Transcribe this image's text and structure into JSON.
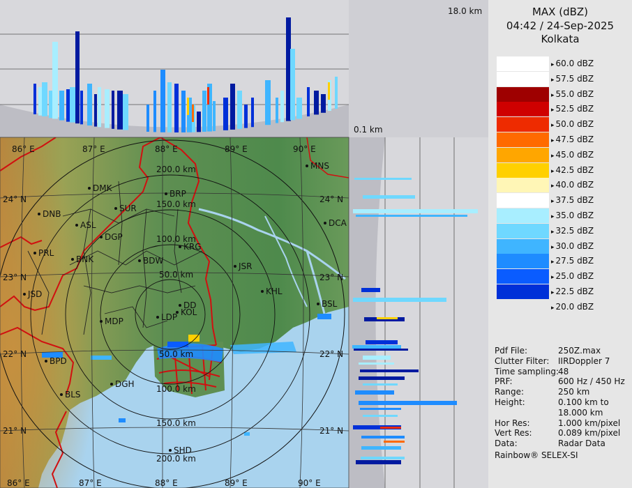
{
  "panel": {
    "product": "MAX (dBZ)",
    "datetime": "04:42 / 24-Sep-2025",
    "station": "Kolkata",
    "legend": [
      {
        "label": "60.0 dBZ",
        "color": "#ffffff"
      },
      {
        "label": "57.5 dBZ",
        "color": "#ffffff"
      },
      {
        "label": "55.0 dBZ",
        "color": "#9e0000"
      },
      {
        "label": "52.5 dBZ",
        "color": "#cf0000"
      },
      {
        "label": "50.0 dBZ",
        "color": "#ee2b00"
      },
      {
        "label": "47.5 dBZ",
        "color": "#ff6a00"
      },
      {
        "label": "45.0 dBZ",
        "color": "#ffa600"
      },
      {
        "label": "42.5 dBZ",
        "color": "#ffd000"
      },
      {
        "label": "40.0 dBZ",
        "color": "#fff6b6"
      },
      {
        "label": "37.5 dBZ",
        "color": "#ffffff"
      },
      {
        "label": "35.0 dBZ",
        "color": "#a8eeff"
      },
      {
        "label": "32.5 dBZ",
        "color": "#6fd8ff"
      },
      {
        "label": "30.0 dBZ",
        "color": "#3fb5ff"
      },
      {
        "label": "27.5 dBZ",
        "color": "#1e8cff"
      },
      {
        "label": "25.0 dBZ",
        "color": "#0a5cff"
      },
      {
        "label": "22.5 dBZ",
        "color": "#0030d8"
      },
      {
        "label": "20.0 dBZ",
        "color": "#001aa0"
      }
    ],
    "info": [
      {
        "k": "Pdf File:",
        "v": "250Z.max"
      },
      {
        "k": "Clutter Filter:",
        "v": "IIRDoppler 7"
      },
      {
        "k": "Time sampling:",
        "v": "48"
      },
      {
        "k": "PRF:",
        "v": "600 Hz / 450 Hz"
      },
      {
        "k": "Range:",
        "v": "250 km"
      },
      {
        "k": "Height:",
        "v": "0.100 km to"
      },
      {
        "k": "",
        "v": "18.000 km"
      },
      {
        "k": "Hor Res:",
        "v": "1.000 km/pixel"
      },
      {
        "k": "Vert Res:",
        "v": "0.089 km/pixel"
      },
      {
        "k": "Data:",
        "v": "Radar Data"
      }
    ],
    "footer": "Rainbow® SELEX-SI"
  },
  "heights": {
    "top": "18.0 km",
    "bottom": "0.1 km"
  },
  "map": {
    "lon_labels": [
      "86° E",
      "87° E",
      "88° E",
      "89° E",
      "90° E"
    ],
    "lat_labels": [
      "24° N",
      "23° N",
      "22° N",
      "21° N"
    ],
    "ring_labels": [
      "50.0 km",
      "100.0 km",
      "150.0 km",
      "200.0 km"
    ],
    "cities": [
      {
        "name": "MNS"
      },
      {
        "name": "DMK"
      },
      {
        "name": "BRP"
      },
      {
        "name": "SUR"
      },
      {
        "name": "DNB"
      },
      {
        "name": "ASL"
      },
      {
        "name": "DGP"
      },
      {
        "name": "DCA"
      },
      {
        "name": "KRG"
      },
      {
        "name": "PRL"
      },
      {
        "name": "BNK"
      },
      {
        "name": "BDW"
      },
      {
        "name": "JSR"
      },
      {
        "name": "KHL"
      },
      {
        "name": "JSD"
      },
      {
        "name": "DD"
      },
      {
        "name": "KOL"
      },
      {
        "name": "BSL"
      },
      {
        "name": "LDP"
      },
      {
        "name": "MDP"
      },
      {
        "name": "BPD"
      },
      {
        "name": "DGH"
      },
      {
        "name": "BLS"
      },
      {
        "name": "SHD"
      }
    ]
  },
  "colors": {
    "land": "#5f8f52",
    "sea": "#a9d3ee",
    "panel": "#e6e6e6",
    "boundary": "#d01010"
  }
}
